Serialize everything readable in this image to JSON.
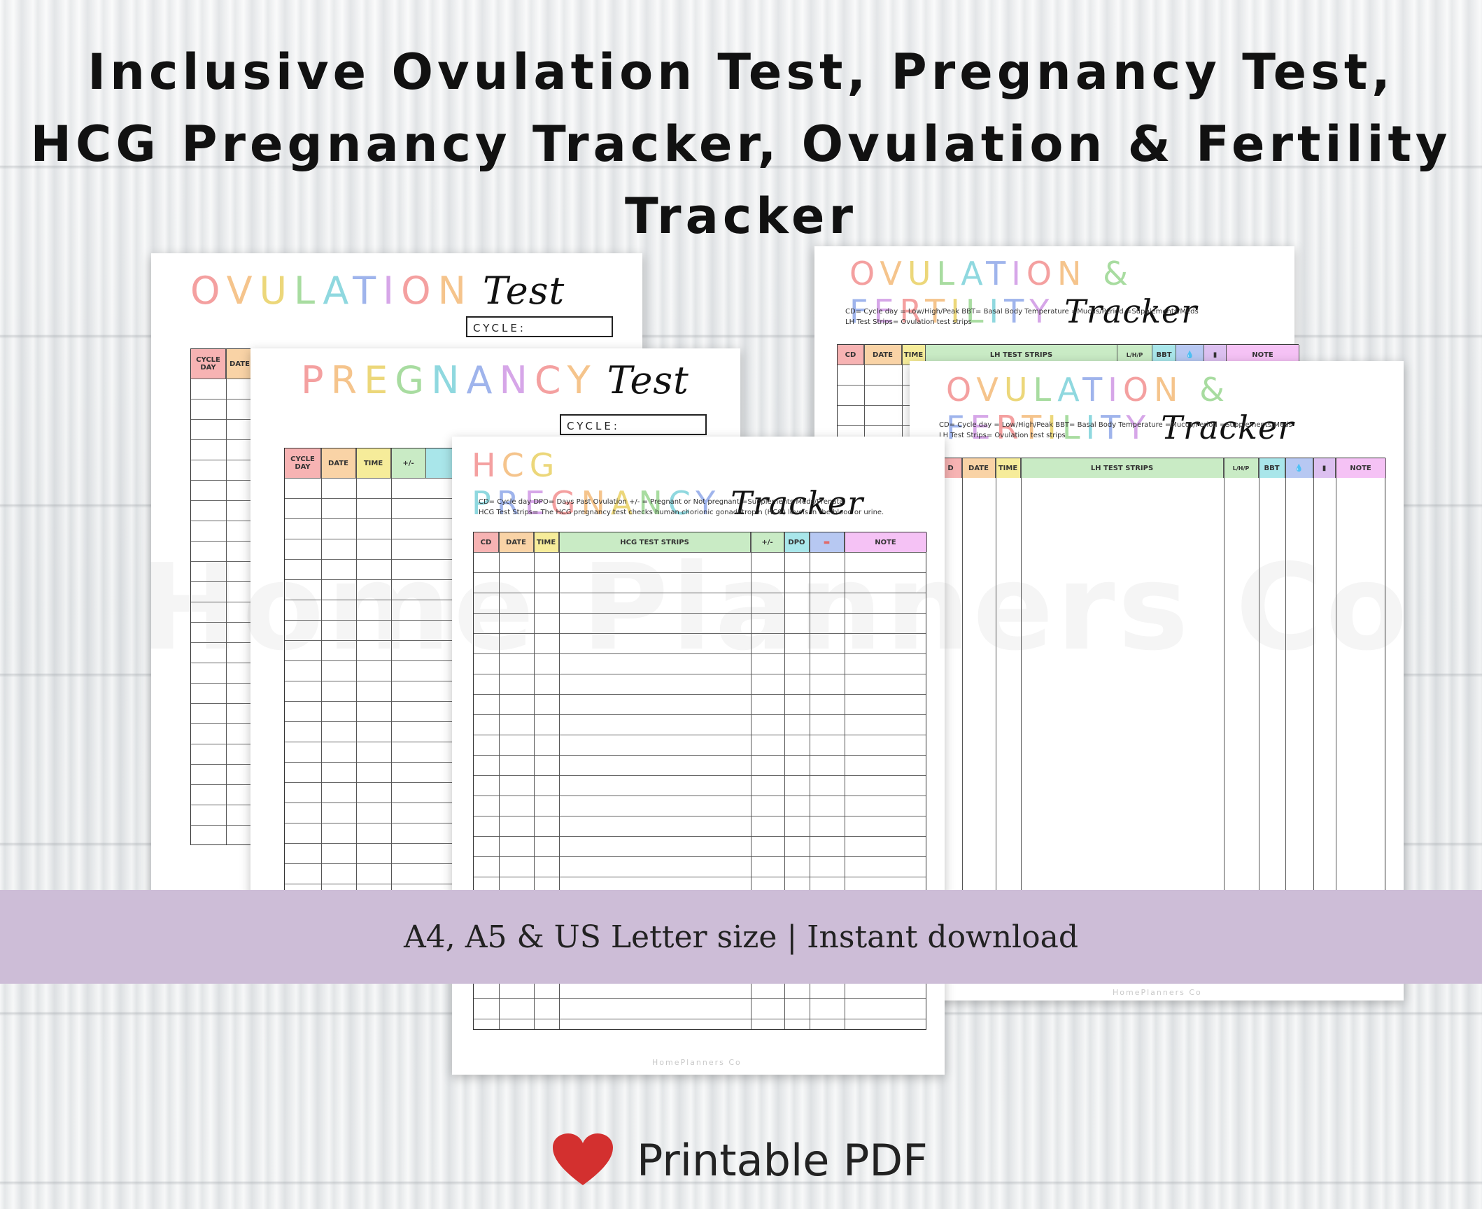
{
  "headline": {
    "line1": "Inclusive Ovulation Test, Pregnancy Test,",
    "line2": "HCG Pregnancy Tracker, Ovulation & Fertility",
    "line3": "Tracker"
  },
  "watermark": "Home Planners Co",
  "page_ovulation": {
    "title_rainbow": "OVULATION",
    "title_script": "Test",
    "cycle_label": "CYCLE:",
    "col_cycle_day": "CYCLE DAY",
    "col_date": "DATE"
  },
  "page_pregnancy": {
    "title_rainbow": "PREGNANCY",
    "title_script": "Test",
    "cycle_label": "CYCLE:",
    "columns": [
      "CYCLE DAY",
      "DATE",
      "TIME",
      "+/-"
    ]
  },
  "page_hcg": {
    "title_rainbow": "HCG PREGNANCY",
    "title_script": "Tracker",
    "legend_line1": "CD= Cycle day      DPO= Days Past Ovulation               +/- = Pregnant or Not pregnant              =Supplements/Meds/Prenatal",
    "legend_line2": "HCG Test Strips=  The HCG pregnancy test checks human chorionic gonadotropin (HCG) levels in the blood or urine.",
    "columns": [
      "CD",
      "DATE",
      "TIME",
      "HCG TEST STRIPS",
      "+/-",
      "DPO",
      "",
      "NOTE"
    ],
    "footer": "HomePlanners Co"
  },
  "page_fertility_back": {
    "title_rainbow": "OVULATION & FERTILITY",
    "title_script": "Tracker",
    "legend_line1": "CD= Cycle day          = Low/High/Peak    BBT= Basal Body Temperature                =Mucus/Period          =Supplements/Meds",
    "legend_line2": "LH Test Strips=  Ovulation test strips",
    "columns": [
      "CD",
      "DATE",
      "TIME",
      "LH TEST STRIPS",
      "L/H/P",
      "BBT",
      "",
      "",
      "NOTE"
    ]
  },
  "page_fertility_front": {
    "title_rainbow": "OVULATION & FERTILITY",
    "title_script": "Tracker",
    "legend_line1": "CD= Cycle day          = Low/High/Peak    BBT= Basal Body Temperature                =Mucus/Period          =Supplements/Meds",
    "legend_line2": "LH Test Strips=  Ovulation test strips",
    "columns": [
      "D",
      "DATE",
      "TIME",
      "LH TEST STRIPS",
      "L/H/P",
      "BBT",
      "",
      "",
      "NOTE"
    ],
    "footer": "HomePlanners Co"
  },
  "banner": {
    "text": "A4, A5 &  US Letter size  | Instant download",
    "color": "#cdbdd7"
  },
  "footer": {
    "icon": "heart-icon",
    "text": "Printable PDF",
    "heart_color": "#d3302f"
  },
  "colors": {
    "pink": "#f7b3b3",
    "orange": "#f9d3a6",
    "yellow": "#f6ec9a",
    "green": "#c9ebc5",
    "cyan": "#a9e6ea",
    "blue": "#b7c8f2",
    "purple": "#dcc0f0",
    "magenta": "#f5c2f5"
  }
}
